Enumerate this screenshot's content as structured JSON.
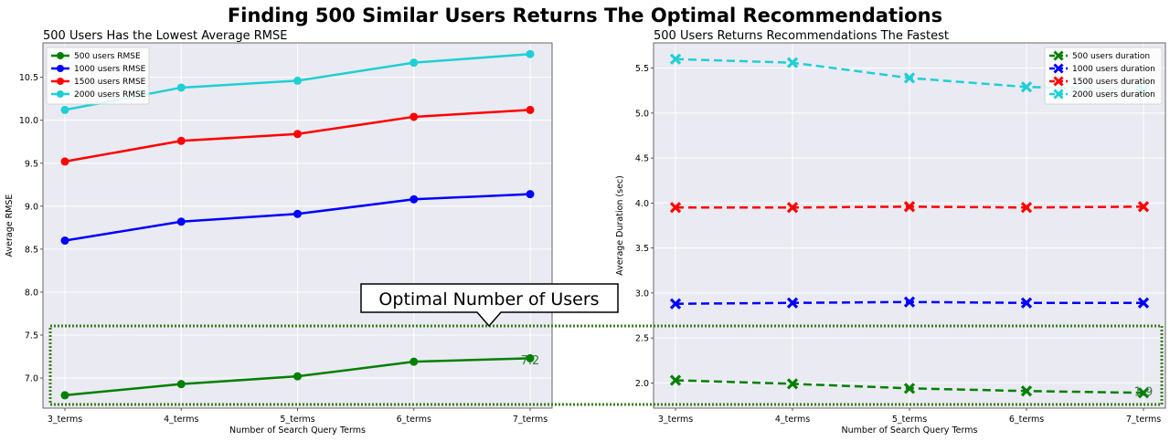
{
  "figure_title": "Finding 500 Similar Users Returns The Optimal Recommendations",
  "callout_text": "Optimal Number of Users",
  "colors": {
    "plot_bg": "#eaeaf2",
    "grid": "#ffffff",
    "highlight_box": "#3a7d1e",
    "annotation": "#2e7d32"
  },
  "chart_data": [
    {
      "type": "line",
      "title": "500 Users Has the Lowest Average RMSE",
      "xlabel": "Number of Search Query Terms",
      "ylabel": "Average RMSE",
      "categories": [
        "3_terms",
        "4_terms",
        "5_terms",
        "6_terms",
        "7_terms"
      ],
      "ylim": [
        6.65,
        10.9
      ],
      "yticks": [
        7.0,
        7.5,
        8.0,
        8.5,
        9.0,
        9.5,
        10.0,
        10.5
      ],
      "ytick_labels": [
        "7.0",
        "7.5",
        "8.0",
        "8.5",
        "9.0",
        "9.5",
        "10.0",
        "10.5"
      ],
      "legend_position": "top-left",
      "marker": "circle",
      "dashed": false,
      "series": [
        {
          "name": "500 users RMSE",
          "color": "#008000",
          "values": [
            6.8,
            6.93,
            7.02,
            7.19,
            7.23
          ]
        },
        {
          "name": "1000 users RMSE",
          "color": "#0000ff",
          "values": [
            8.6,
            8.82,
            8.91,
            9.08,
            9.14
          ]
        },
        {
          "name": "1500 users RMSE",
          "color": "#ff0000",
          "values": [
            9.52,
            9.76,
            9.84,
            10.04,
            10.12
          ]
        },
        {
          "name": "2000 users RMSE",
          "color": "#1fcfd6",
          "values": [
            10.12,
            10.38,
            10.46,
            10.67,
            10.77
          ]
        }
      ],
      "annotation": {
        "text": "7.2",
        "x_index": 4,
        "y": 7.2
      }
    },
    {
      "type": "line",
      "title": "500 Users Returns Recommendations The Fastest",
      "xlabel": "Number of Search Query Terms",
      "ylabel": "Average Duration (sec)",
      "categories": [
        "3_terms",
        "4_terms",
        "5_terms",
        "6_terms",
        "7_terms"
      ],
      "ylim": [
        1.72,
        5.78
      ],
      "yticks": [
        2.0,
        2.5,
        3.0,
        3.5,
        4.0,
        4.5,
        5.0,
        5.5
      ],
      "ytick_labels": [
        "2.0",
        "2.5",
        "3.0",
        "3.5",
        "4.0",
        "4.5",
        "5.0",
        "5.5"
      ],
      "legend_position": "top-right",
      "marker": "x",
      "dashed": true,
      "series": [
        {
          "name": "500 users duration",
          "color": "#008000",
          "values": [
            2.03,
            1.99,
            1.94,
            1.91,
            1.89
          ]
        },
        {
          "name": "1000 users duration",
          "color": "#0000ff",
          "values": [
            2.88,
            2.89,
            2.9,
            2.89,
            2.89
          ]
        },
        {
          "name": "1500 users duration",
          "color": "#ff0000",
          "values": [
            3.95,
            3.95,
            3.96,
            3.95,
            3.96
          ]
        },
        {
          "name": "2000 users duration",
          "color": "#1fcfd6",
          "values": [
            5.6,
            5.56,
            5.39,
            5.29,
            5.26
          ]
        }
      ],
      "annotation": {
        "text": "1.9",
        "x_index": 4,
        "y": 1.9
      }
    }
  ]
}
